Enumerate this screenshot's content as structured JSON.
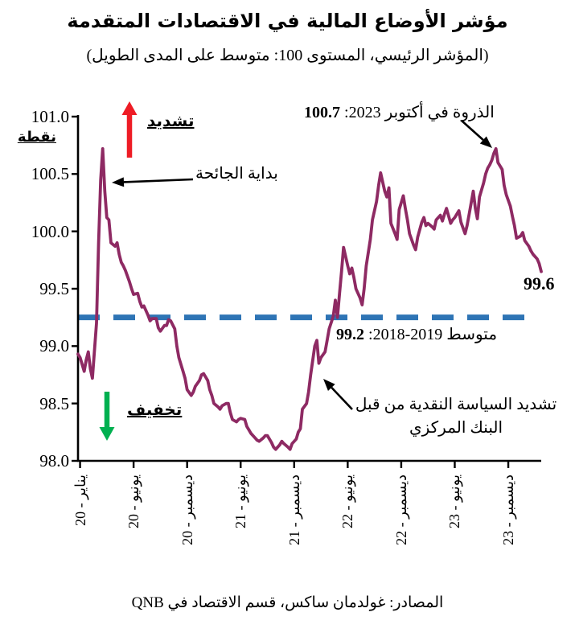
{
  "title": "مؤشر الأوضاع المالية في الاقتصادات المتقدمة",
  "subtitle": "(المؤشر الرئيسي، المستوى 100: متوسط على المدى الطويل)",
  "source": "المصادر: غولدمان ساكس، قسم الاقتصاد في QNB",
  "annotations": {
    "tighten_label": "تشديد",
    "easing_label": "تخفيف",
    "pandemic_label": "بداية الجائحة",
    "peak_prefix": "الذروة في أكتوبر 2023: ",
    "peak_value": "100.7",
    "average_prefix": "متوسط 2019-2018: ",
    "average_value": "99.2",
    "latest_value": "99.6",
    "cb_tightening_label": "تشديد السياسة النقدية من قبل البنك المركزي"
  },
  "colors": {
    "line": "#8E2A63",
    "average_line": "#2E74B5",
    "tighten_arrow": "#EE1C25",
    "easing_arrow": "#00B050",
    "axis": "#000000"
  },
  "chart_data": {
    "type": "line",
    "title": "مؤشر الأوضاع المالية في الاقتصادات المتقدمة",
    "ylabel": "نقطة",
    "y_axis": {
      "min": 98.0,
      "max": 101.0,
      "step": 0.5,
      "tick_labels": [
        "101.0",
        "100.5",
        "100.0",
        "99.5",
        "99.0",
        "98.5",
        "98.0"
      ]
    },
    "x_axis": {
      "frequency": "weekly",
      "total_weeks": 225,
      "tick_weeks": [
        1,
        27,
        53,
        79,
        105,
        131,
        157,
        183,
        209
      ],
      "tick_labels": [
        "يناير - 20",
        "يونيو - 20",
        "ديسمبر - 20",
        "يونيو - 21",
        "ديسمبر - 21",
        "يونيو - 22",
        "ديسمبر - 22",
        "يونيو - 23",
        "ديسمبر - 23"
      ]
    },
    "average_line": {
      "value": 99.25,
      "label": "متوسط 2018-2019: 99.2"
    },
    "peak": {
      "week": 203,
      "value": 100.7,
      "label": "الذروة في أكتوبر 2023: 100.7"
    },
    "latest": {
      "week": 225,
      "value": 99.6
    },
    "series": [
      {
        "name": "financial-conditions-index",
        "points": [
          [
            0,
            98.93
          ],
          [
            1,
            98.9
          ],
          [
            3,
            98.78
          ],
          [
            4,
            98.88
          ],
          [
            5,
            98.95
          ],
          [
            6,
            98.8
          ],
          [
            7,
            98.72
          ],
          [
            9,
            99.2
          ],
          [
            10,
            99.9
          ],
          [
            11,
            100.45
          ],
          [
            12,
            100.72
          ],
          [
            13,
            100.35
          ],
          [
            14,
            100.12
          ],
          [
            15,
            100.1
          ],
          [
            16,
            99.9
          ],
          [
            18,
            99.87
          ],
          [
            19,
            99.9
          ],
          [
            20,
            99.8
          ],
          [
            21,
            99.73
          ],
          [
            22,
            99.7
          ],
          [
            23,
            99.66
          ],
          [
            25,
            99.56
          ],
          [
            26,
            99.5
          ],
          [
            27,
            99.45
          ],
          [
            29,
            99.46
          ],
          [
            30,
            99.39
          ],
          [
            31,
            99.34
          ],
          [
            32,
            99.35
          ],
          [
            34,
            99.27
          ],
          [
            35,
            99.22
          ],
          [
            36,
            99.24
          ],
          [
            38,
            99.24
          ],
          [
            39,
            99.16
          ],
          [
            40,
            99.13
          ],
          [
            42,
            99.18
          ],
          [
            43,
            99.18
          ],
          [
            44,
            99.23
          ],
          [
            45,
            99.22
          ],
          [
            47,
            99.15
          ],
          [
            48,
            99.0
          ],
          [
            49,
            98.9
          ],
          [
            51,
            98.78
          ],
          [
            52,
            98.72
          ],
          [
            53,
            98.62
          ],
          [
            55,
            98.57
          ],
          [
            56,
            98.6
          ],
          [
            57,
            98.65
          ],
          [
            59,
            98.7
          ],
          [
            60,
            98.75
          ],
          [
            61,
            98.76
          ],
          [
            63,
            98.7
          ],
          [
            64,
            98.62
          ],
          [
            65,
            98.57
          ],
          [
            66,
            98.5
          ],
          [
            68,
            98.47
          ],
          [
            69,
            98.45
          ],
          [
            70,
            98.48
          ],
          [
            72,
            98.5
          ],
          [
            73,
            98.5
          ],
          [
            74,
            98.42
          ],
          [
            75,
            98.36
          ],
          [
            77,
            98.34
          ],
          [
            78,
            98.36
          ],
          [
            79,
            98.37
          ],
          [
            81,
            98.36
          ],
          [
            82,
            98.3
          ],
          [
            83,
            98.27
          ],
          [
            84,
            98.24
          ],
          [
            86,
            98.2
          ],
          [
            87,
            98.18
          ],
          [
            88,
            98.17
          ],
          [
            90,
            98.2
          ],
          [
            91,
            98.22
          ],
          [
            92,
            98.22
          ],
          [
            94,
            98.16
          ],
          [
            95,
            98.12
          ],
          [
            96,
            98.1
          ],
          [
            98,
            98.14
          ],
          [
            99,
            98.17
          ],
          [
            100,
            98.15
          ],
          [
            102,
            98.12
          ],
          [
            103,
            98.1
          ],
          [
            104,
            98.15
          ],
          [
            106,
            98.19
          ],
          [
            107,
            98.25
          ],
          [
            108,
            98.28
          ],
          [
            109,
            98.45
          ],
          [
            111,
            98.5
          ],
          [
            112,
            98.6
          ],
          [
            113,
            98.75
          ],
          [
            115,
            99.0
          ],
          [
            116,
            99.05
          ],
          [
            117,
            98.85
          ],
          [
            118,
            98.9
          ],
          [
            120,
            98.95
          ],
          [
            121,
            99.05
          ],
          [
            122,
            99.15
          ],
          [
            124,
            99.26
          ],
          [
            125,
            99.4
          ],
          [
            126,
            99.25
          ],
          [
            127,
            99.45
          ],
          [
            128,
            99.65
          ],
          [
            129,
            99.86
          ],
          [
            131,
            99.7
          ],
          [
            132,
            99.63
          ],
          [
            133,
            99.68
          ],
          [
            134,
            99.6
          ],
          [
            135,
            99.5
          ],
          [
            137,
            99.42
          ],
          [
            138,
            99.36
          ],
          [
            139,
            99.5
          ],
          [
            140,
            99.7
          ],
          [
            142,
            99.93
          ],
          [
            143,
            100.1
          ],
          [
            145,
            100.26
          ],
          [
            146,
            100.4
          ],
          [
            147,
            100.51
          ],
          [
            149,
            100.35
          ],
          [
            150,
            100.3
          ],
          [
            151,
            100.38
          ],
          [
            152,
            100.07
          ],
          [
            154,
            99.98
          ],
          [
            155,
            99.93
          ],
          [
            156,
            100.19
          ],
          [
            158,
            100.31
          ],
          [
            159,
            100.2
          ],
          [
            160,
            100.1
          ],
          [
            161,
            99.98
          ],
          [
            163,
            99.88
          ],
          [
            164,
            99.84
          ],
          [
            165,
            99.95
          ],
          [
            167,
            100.08
          ],
          [
            168,
            100.12
          ],
          [
            169,
            100.05
          ],
          [
            170,
            100.07
          ],
          [
            172,
            100.04
          ],
          [
            173,
            100.02
          ],
          [
            174,
            100.1
          ],
          [
            176,
            100.14
          ],
          [
            177,
            100.09
          ],
          [
            178,
            100.15
          ],
          [
            179,
            100.2
          ],
          [
            181,
            100.07
          ],
          [
            182,
            100.1
          ],
          [
            183,
            100.12
          ],
          [
            185,
            100.18
          ],
          [
            186,
            100.08
          ],
          [
            188,
            99.98
          ],
          [
            189,
            100.05
          ],
          [
            190,
            100.15
          ],
          [
            192,
            100.35
          ],
          [
            193,
            100.2
          ],
          [
            194,
            100.11
          ],
          [
            195,
            100.3
          ],
          [
            197,
            100.42
          ],
          [
            198,
            100.5
          ],
          [
            199,
            100.55
          ],
          [
            200,
            100.58
          ],
          [
            201,
            100.62
          ],
          [
            202,
            100.68
          ],
          [
            203,
            100.72
          ],
          [
            204,
            100.6
          ],
          [
            206,
            100.54
          ],
          [
            207,
            100.4
          ],
          [
            208,
            100.32
          ],
          [
            210,
            100.22
          ],
          [
            211,
            100.13
          ],
          [
            212,
            100.05
          ],
          [
            213,
            99.94
          ],
          [
            215,
            99.96
          ],
          [
            216,
            99.99
          ],
          [
            217,
            99.92
          ],
          [
            219,
            99.87
          ],
          [
            220,
            99.83
          ],
          [
            221,
            99.8
          ],
          [
            223,
            99.76
          ],
          [
            224,
            99.72
          ],
          [
            225,
            99.65
          ]
        ]
      }
    ]
  }
}
